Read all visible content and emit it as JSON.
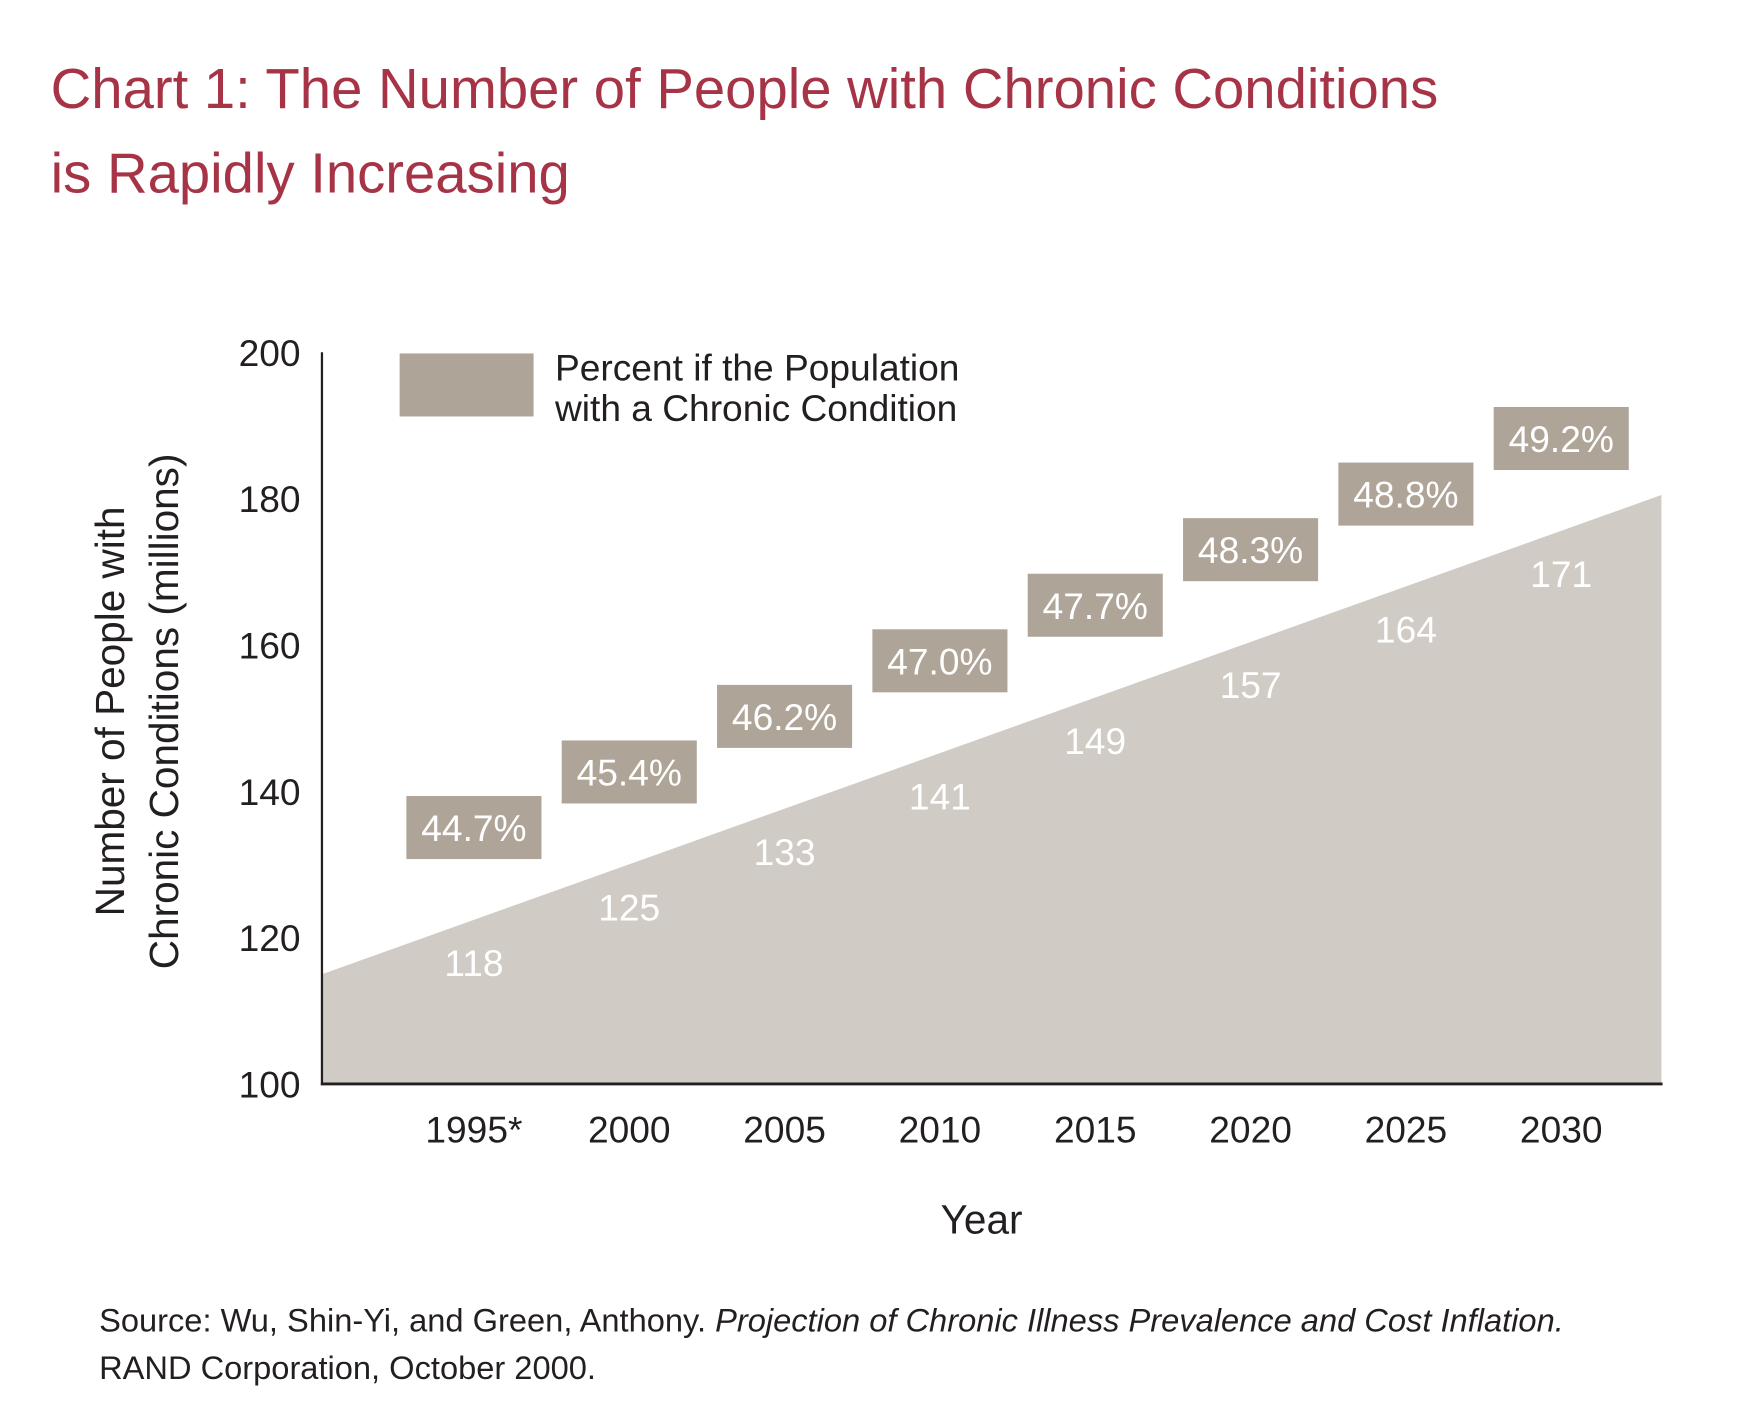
{
  "chart_data": {
    "type": "area",
    "title": [
      "Chart 1: The Number of People with Chronic Conditions",
      "is Rapidly Increasing"
    ],
    "xlabel": "Year",
    "ylabel": [
      "Number of People with",
      "Chronic Conditions (millions)"
    ],
    "ylim": [
      100,
      200
    ],
    "yticks": [
      "100",
      "120",
      "140",
      "160",
      "180",
      "200"
    ],
    "categories": [
      "1995*",
      "2000",
      "2005",
      "2010",
      "2015",
      "2020",
      "2025",
      "2030"
    ],
    "values": [
      118,
      125,
      133,
      141,
      149,
      157,
      164,
      171
    ],
    "value_labels": [
      "118",
      "125",
      "133",
      "141",
      "149",
      "157",
      "164",
      "171"
    ],
    "percent_labels": [
      "44.7%",
      "45.4%",
      "46.2%",
      "47.0%",
      "47.7%",
      "48.3%",
      "48.8%",
      "49.2%"
    ],
    "area_edge_values": [
      115,
      180.5
    ],
    "legend": {
      "label": [
        "Percent if the Population",
        "with a Chronic Condition"
      ],
      "placement": "top-left"
    },
    "grid": false,
    "colors": {
      "title": "#a63446",
      "area": "#d0cbc4",
      "label_box": "#aea598",
      "axis": "#231f20"
    }
  },
  "source": {
    "prefix": "Source: Wu, Shin-Yi, and Green, Anthony. ",
    "italic": "Projection of Chronic Illness Prevalence and Cost Inflation.",
    "line2": "RAND Corporation, October 2000."
  }
}
